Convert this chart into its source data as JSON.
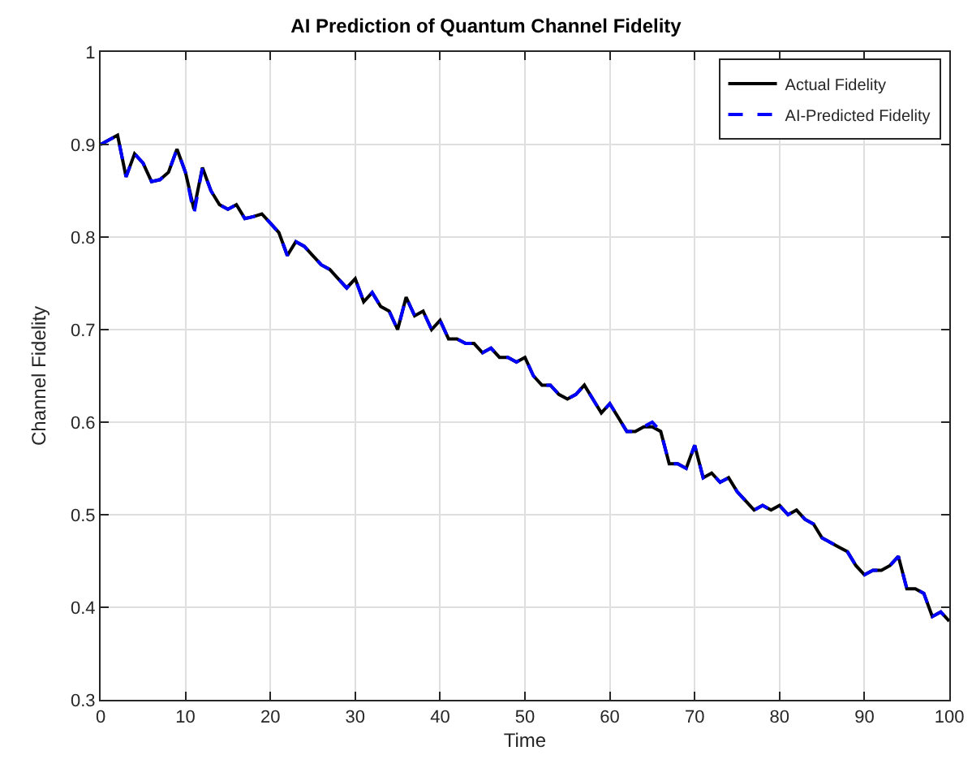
{
  "chart_data": {
    "type": "line",
    "title": "AI Prediction of Quantum Channel Fidelity",
    "xlabel": "Time",
    "ylabel": "Channel Fidelity",
    "x": [
      0,
      1,
      2,
      3,
      4,
      5,
      6,
      7,
      8,
      9,
      10,
      11,
      12,
      13,
      14,
      15,
      16,
      17,
      18,
      19,
      20,
      21,
      22,
      23,
      24,
      25,
      26,
      27,
      28,
      29,
      30,
      31,
      32,
      33,
      34,
      35,
      36,
      37,
      38,
      39,
      40,
      41,
      42,
      43,
      44,
      45,
      46,
      47,
      48,
      49,
      50,
      51,
      52,
      53,
      54,
      55,
      56,
      57,
      58,
      59,
      60,
      61,
      62,
      63,
      64,
      65,
      66,
      67,
      68,
      69,
      70,
      71,
      72,
      73,
      74,
      75,
      76,
      77,
      78,
      79,
      80,
      81,
      82,
      83,
      84,
      85,
      86,
      87,
      88,
      89,
      90,
      91,
      92,
      93,
      94,
      95,
      96,
      97,
      98,
      99,
      100
    ],
    "series": [
      {
        "name": "Actual Fidelity",
        "color": "#000000",
        "line_style": "solid",
        "values": [
          0.9,
          0.905,
          0.91,
          0.865,
          0.89,
          0.88,
          0.86,
          0.862,
          0.87,
          0.895,
          0.87,
          0.83,
          0.875,
          0.85,
          0.835,
          0.83,
          0.835,
          0.82,
          0.822,
          0.825,
          0.815,
          0.805,
          0.78,
          0.795,
          0.79,
          0.78,
          0.77,
          0.765,
          0.755,
          0.745,
          0.755,
          0.73,
          0.74,
          0.725,
          0.72,
          0.7,
          0.735,
          0.715,
          0.72,
          0.7,
          0.71,
          0.69,
          0.69,
          0.685,
          0.685,
          0.675,
          0.68,
          0.67,
          0.67,
          0.665,
          0.67,
          0.65,
          0.64,
          0.64,
          0.63,
          0.625,
          0.63,
          0.64,
          0.625,
          0.61,
          0.62,
          0.605,
          0.59,
          0.59,
          0.595,
          0.595,
          0.59,
          0.555,
          0.555,
          0.55,
          0.575,
          0.54,
          0.545,
          0.535,
          0.54,
          0.525,
          0.515,
          0.505,
          0.51,
          0.505,
          0.51,
          0.5,
          0.505,
          0.495,
          0.49,
          0.475,
          0.47,
          0.465,
          0.46,
          0.445,
          0.435,
          0.44,
          0.44,
          0.445,
          0.455,
          0.42,
          0.42,
          0.415,
          0.39,
          0.395,
          0.385
        ]
      },
      {
        "name": "AI-Predicted Fidelity",
        "color": "#0000ff",
        "line_style": "dashed",
        "values": [
          0.9,
          0.905,
          0.91,
          0.865,
          0.89,
          0.88,
          0.86,
          0.862,
          0.87,
          0.895,
          0.87,
          0.825,
          0.875,
          0.85,
          0.835,
          0.83,
          0.835,
          0.82,
          0.822,
          0.825,
          0.815,
          0.805,
          0.78,
          0.795,
          0.79,
          0.78,
          0.77,
          0.765,
          0.755,
          0.745,
          0.755,
          0.73,
          0.74,
          0.725,
          0.72,
          0.7,
          0.735,
          0.715,
          0.72,
          0.7,
          0.71,
          0.69,
          0.69,
          0.685,
          0.685,
          0.675,
          0.68,
          0.67,
          0.67,
          0.665,
          0.67,
          0.65,
          0.64,
          0.64,
          0.63,
          0.625,
          0.63,
          0.64,
          0.625,
          0.61,
          0.62,
          0.605,
          0.59,
          0.59,
          0.595,
          0.6,
          0.59,
          0.555,
          0.555,
          0.55,
          0.575,
          0.54,
          0.545,
          0.535,
          0.54,
          0.525,
          0.515,
          0.505,
          0.51,
          0.505,
          0.51,
          0.5,
          0.505,
          0.495,
          0.49,
          0.475,
          0.47,
          0.465,
          0.46,
          0.445,
          0.435,
          0.44,
          0.44,
          0.445,
          0.455,
          0.42,
          0.42,
          0.415,
          0.39,
          0.395,
          0.385
        ]
      }
    ],
    "xlim": [
      0,
      100
    ],
    "xticks": [
      0,
      10,
      20,
      30,
      40,
      50,
      60,
      70,
      80,
      90,
      100
    ],
    "ylim": [
      0.3,
      1
    ],
    "yticks": [
      0.3,
      0.4,
      0.5,
      0.6,
      0.7,
      0.8,
      0.9,
      1
    ],
    "grid": true,
    "legend": "top right",
    "marker": "none"
  }
}
